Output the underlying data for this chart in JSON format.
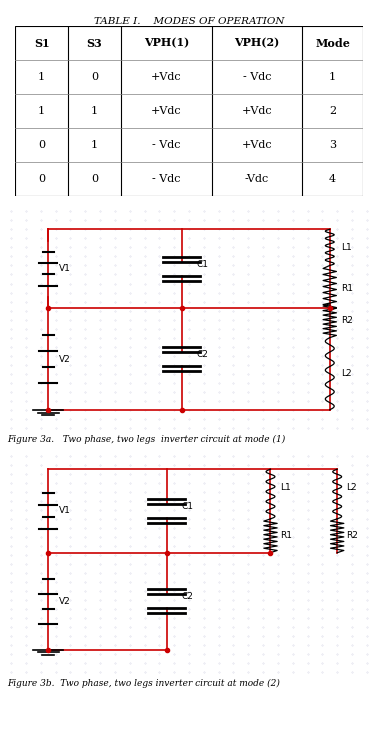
{
  "title": "TABLE I.    MODES OF OPERATION",
  "table_headers": [
    "S1",
    "S3",
    "VPH(1)",
    "VPH(2)",
    "Mode"
  ],
  "table_rows": [
    [
      "1",
      "0",
      "+Vdc",
      "- Vdc",
      "1"
    ],
    [
      "1",
      "1",
      "+Vdc",
      "+Vdc",
      "2"
    ],
    [
      "0",
      "1",
      "- Vdc",
      "+Vdc",
      "3"
    ],
    [
      "0",
      "0",
      "- Vdc",
      "-Vdc",
      "4"
    ]
  ],
  "fig3a_caption": "Figure 3a.   Two phase, two legs  inverter circuit at mode (1)",
  "fig3b_caption": "Figure 3b.  Two phase, two legs inverter circuit at mode (2)",
  "wire_color": "#cc0000",
  "dot_color": "#cc0000",
  "component_color": "#000000",
  "bg_color": "#ffffff",
  "dot_bg": "#e8e8f0"
}
